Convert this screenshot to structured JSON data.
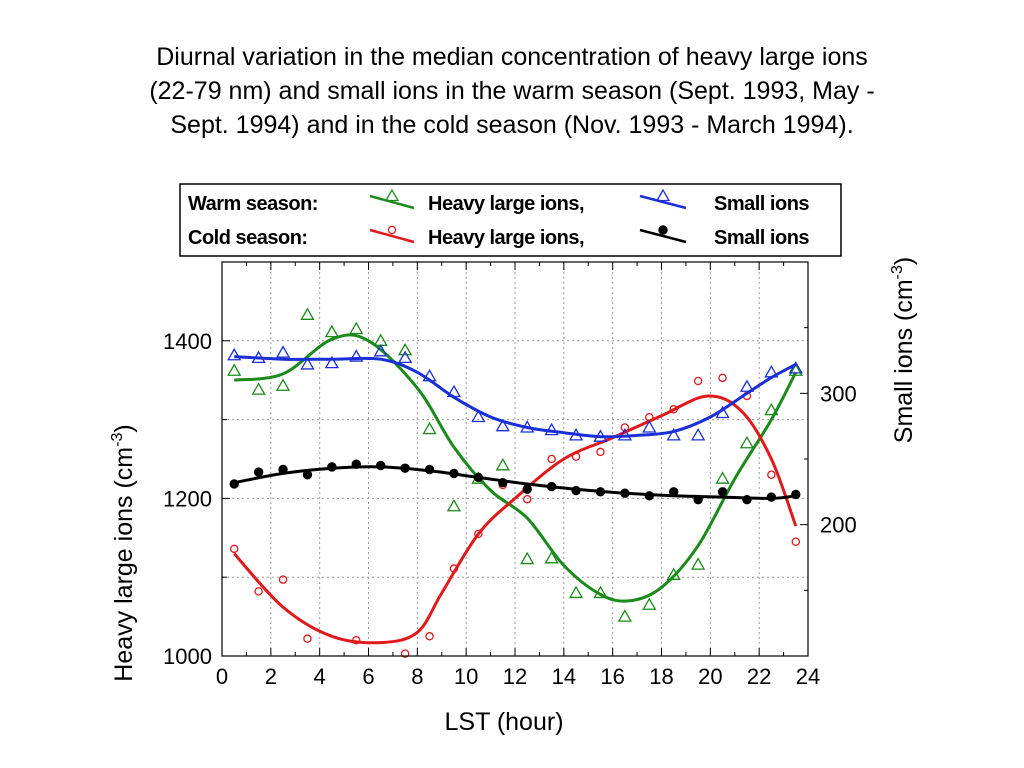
{
  "title_lines": [
    "Diurnal variation in the median concentration of heavy large ions",
    "(22-79 nm) and small ions in the warm season (Sept. 1993, May -",
    "Sept. 1994) and in the cold season (Nov. 1993  -  March 1994)."
  ],
  "legend": {
    "warm_label": "Warm season:",
    "cold_label": "Cold season:",
    "heavy_label": "Heavy large ions,",
    "small_label": "Small ions"
  },
  "colors": {
    "warm_heavy": "#1a8a1a",
    "warm_small": "#1a2fd6",
    "cold_heavy": "#e0191b",
    "cold_small": "#000000",
    "grid": "#999999"
  },
  "chart_data": {
    "type": "scatter",
    "xlabel": "LST  (hour)",
    "ylabel_left": "Heavy large ions  (cm-3)",
    "ylabel_left_main": "Heavy large ions  (cm",
    "ylabel_left_sup": "-3",
    "ylabel_left_close": ")",
    "ylabel_right": "Small ions  (cm-3)",
    "ylabel_right_main": "Small ions  (cm",
    "ylabel_right_sup": "-3",
    "ylabel_right_close": ")",
    "xlim": [
      0,
      24
    ],
    "ylim_left": [
      1000,
      1500
    ],
    "ylim_right": [
      100,
      400
    ],
    "xticks": [
      "0",
      "2",
      "4",
      "6",
      "8",
      "10",
      "12",
      "14",
      "16",
      "18",
      "20",
      "22",
      "24"
    ],
    "yticks_left": [
      "1000",
      "1200",
      "1400"
    ],
    "yticks_right": [
      "200",
      "300"
    ],
    "grid": true,
    "legend_position": "top",
    "x": [
      0.5,
      1.5,
      2.5,
      3.5,
      4.5,
      5.5,
      6.5,
      7.5,
      8.5,
      9.5,
      10.5,
      11.5,
      12.5,
      13.5,
      14.5,
      15.5,
      16.5,
      17.5,
      18.5,
      19.5,
      20.5,
      21.5,
      22.5,
      23.5
    ],
    "series": [
      {
        "key": "warm_heavy",
        "axis": "left",
        "marker": "triangle",
        "values": [
          1362,
          1338,
          1343,
          1433,
          1411,
          1415,
          1400,
          1388,
          1288,
          1190,
          1225,
          1242,
          1123,
          1124,
          1080,
          1080,
          1050,
          1065,
          1103,
          1116,
          1225,
          1270,
          1312,
          1362
        ],
        "fit": [
          [
            0.5,
            1350
          ],
          [
            2.5,
            1358
          ],
          [
            4.5,
            1402
          ],
          [
            6.0,
            1400
          ],
          [
            8.0,
            1340
          ],
          [
            9.5,
            1265
          ],
          [
            11.0,
            1210
          ],
          [
            12.5,
            1175
          ],
          [
            14.0,
            1115
          ],
          [
            15.5,
            1078
          ],
          [
            16.7,
            1070
          ],
          [
            18.0,
            1087
          ],
          [
            19.5,
            1140
          ],
          [
            21.0,
            1225
          ],
          [
            22.5,
            1300
          ],
          [
            23.5,
            1360
          ]
        ]
      },
      {
        "key": "cold_heavy",
        "axis": "left",
        "marker": "circle",
        "values": [
          1136,
          1082,
          1097,
          1022,
          null,
          1020,
          null,
          1003,
          1025,
          1111,
          1155,
          1217,
          1199,
          1250,
          1253,
          1259,
          1290,
          1303,
          1313,
          1349,
          1353,
          1330,
          1230,
          1145
        ],
        "fit": [
          [
            0.5,
            1130
          ],
          [
            2.5,
            1062
          ],
          [
            4.5,
            1025
          ],
          [
            6.5,
            1017
          ],
          [
            8.0,
            1030
          ],
          [
            9.0,
            1080
          ],
          [
            10.5,
            1155
          ],
          [
            12.0,
            1200
          ],
          [
            14.0,
            1250
          ],
          [
            16.0,
            1277
          ],
          [
            18.0,
            1305
          ],
          [
            19.9,
            1330
          ],
          [
            21.3,
            1310
          ],
          [
            22.5,
            1250
          ],
          [
            23.5,
            1165
          ]
        ]
      },
      {
        "key": "warm_small",
        "axis": "right",
        "marker": "triangle",
        "values": [
          329,
          327,
          331,
          322,
          323,
          328,
          332,
          327,
          313,
          301,
          282,
          275,
          274,
          272,
          268,
          267,
          268,
          274,
          268,
          268,
          285,
          305,
          316,
          319
        ],
        "fit": [
          [
            0.5,
            328
          ],
          [
            2.5,
            326
          ],
          [
            4.5,
            326
          ],
          [
            6.5,
            326
          ],
          [
            8.0,
            316
          ],
          [
            9.5,
            297
          ],
          [
            11.0,
            282
          ],
          [
            12.5,
            274
          ],
          [
            14.0,
            270
          ],
          [
            15.5,
            267
          ],
          [
            17.0,
            268
          ],
          [
            18.5,
            271
          ],
          [
            20.0,
            282
          ],
          [
            21.5,
            300
          ],
          [
            22.5,
            312
          ],
          [
            23.5,
            322
          ]
        ]
      },
      {
        "key": "cold_small",
        "axis": "right",
        "marker": "dot",
        "values": [
          231,
          240,
          242,
          238,
          244,
          246,
          245,
          243,
          242,
          239,
          236,
          232,
          227,
          229,
          226,
          225,
          224,
          222,
          225,
          219,
          225,
          219,
          221,
          223
        ],
        "fit": [
          [
            0.5,
            232
          ],
          [
            2.5,
            239
          ],
          [
            4.5,
            243
          ],
          [
            6.5,
            244
          ],
          [
            8.5,
            241
          ],
          [
            10.5,
            236
          ],
          [
            12.5,
            231
          ],
          [
            14.5,
            227
          ],
          [
            16.5,
            224
          ],
          [
            18.5,
            222
          ],
          [
            20.5,
            221
          ],
          [
            22.5,
            220
          ],
          [
            23.5,
            222
          ]
        ]
      }
    ]
  }
}
